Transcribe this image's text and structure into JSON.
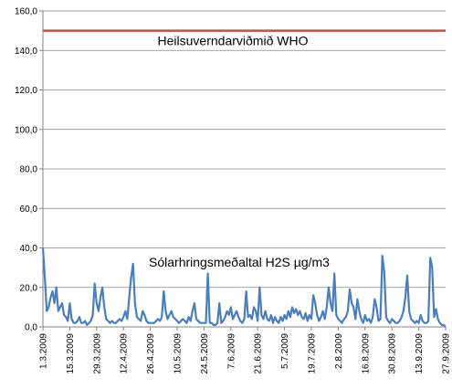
{
  "chart_data": {
    "type": "line",
    "categories": [
      "1.3.2009",
      null,
      null,
      null,
      null,
      null,
      null,
      null,
      null,
      null,
      null,
      null,
      null,
      null,
      "15.3.2009",
      null,
      null,
      null,
      null,
      null,
      null,
      null,
      null,
      null,
      null,
      null,
      null,
      null,
      "29.3.2009",
      null,
      null,
      null,
      null,
      null,
      null,
      null,
      null,
      null,
      null,
      null,
      null,
      null,
      "12.4.2009",
      null,
      null,
      null,
      null,
      null,
      null,
      null,
      null,
      null,
      null,
      null,
      null,
      null,
      "26.4.2009",
      null,
      null,
      null,
      null,
      null,
      null,
      null,
      null,
      null,
      null,
      null,
      null,
      null,
      "10.5.2009",
      null,
      null,
      null,
      null,
      null,
      null,
      null,
      null,
      null,
      null,
      null,
      null,
      null,
      "24.5.2009",
      null,
      null,
      null,
      null,
      null,
      null,
      null,
      null,
      null,
      null,
      null,
      null,
      null,
      "7.6.2009",
      null,
      null,
      null,
      null,
      null,
      null,
      null,
      null,
      null,
      null,
      null,
      null,
      null,
      "21.6.2009",
      null,
      null,
      null,
      null,
      null,
      null,
      null,
      null,
      null,
      null,
      null,
      null,
      null,
      "5.7.2009",
      null,
      null,
      null,
      null,
      null,
      null,
      null,
      null,
      null,
      null,
      null,
      null,
      null,
      "19.7.2009",
      null,
      null,
      null,
      null,
      null,
      null,
      null,
      null,
      null,
      null,
      null,
      null,
      null,
      "2.8.2009",
      null,
      null,
      null,
      null,
      null,
      null,
      null,
      null,
      null,
      null,
      null,
      null,
      null,
      "16.8.2009",
      null,
      null,
      null,
      null,
      null,
      null,
      null,
      null,
      null,
      null,
      null,
      null,
      null,
      "30.8.2009",
      null,
      null,
      null,
      null,
      null,
      null,
      null,
      null,
      null,
      null,
      null,
      null,
      null,
      "13.9.2009",
      null,
      null,
      null,
      null,
      null,
      null,
      null,
      null,
      null,
      null,
      null,
      null,
      null,
      "27.9.2009"
    ],
    "series": [
      {
        "name": "Sólarhringsmeðaltal H2S µg/m3",
        "color": "#4a7ebb",
        "values": [
          40,
          25,
          8,
          10,
          15,
          18,
          12,
          20,
          8,
          10,
          12,
          6,
          5,
          3,
          12,
          4,
          2,
          2,
          3,
          5,
          2,
          2,
          3,
          1,
          2,
          3,
          6,
          22,
          12,
          8,
          15,
          20,
          10,
          4,
          3,
          2,
          3,
          2,
          2,
          3,
          4,
          3,
          5,
          8,
          4,
          15,
          25,
          32,
          12,
          5,
          4,
          3,
          8,
          6,
          3,
          2,
          2,
          2,
          2,
          3,
          4,
          3,
          5,
          18,
          8,
          4,
          6,
          8,
          5,
          4,
          3,
          2,
          3,
          4,
          3,
          2,
          5,
          3,
          8,
          12,
          4,
          3,
          2,
          2,
          2,
          2,
          27,
          2,
          2,
          1,
          1,
          2,
          12,
          2,
          3,
          5,
          8,
          6,
          10,
          4,
          6,
          8,
          5,
          3,
          2,
          4,
          18,
          5,
          6,
          4,
          10,
          8,
          3,
          20,
          6,
          4,
          8,
          4,
          3,
          6,
          2,
          5,
          3,
          2,
          5,
          3,
          6,
          4,
          8,
          5,
          10,
          7,
          9,
          6,
          8,
          5,
          4,
          7,
          3,
          6,
          4,
          16,
          12,
          6,
          3,
          5,
          8,
          4,
          10,
          20,
          12,
          8,
          27,
          6,
          4,
          3,
          2,
          4,
          5,
          8,
          19,
          12,
          10,
          4,
          14,
          8,
          4,
          2,
          6,
          3,
          4,
          2,
          5,
          14,
          10,
          3,
          4,
          36,
          28,
          5,
          3,
          2,
          4,
          3,
          2,
          2,
          3,
          5,
          8,
          15,
          26,
          8,
          4,
          3,
          2,
          3,
          2,
          6,
          3,
          2,
          2,
          3,
          35,
          30,
          5,
          9,
          4,
          2,
          1,
          1,
          0
        ]
      }
    ],
    "hlines": [
      {
        "value": 150,
        "label": "Heilsuverndarviðmið WHO",
        "color": "#c0504d"
      }
    ],
    "ylim": [
      0,
      160
    ],
    "yticks": [
      {
        "value": 0,
        "label": "0,0"
      },
      {
        "value": 20,
        "label": "20,0"
      },
      {
        "value": 40,
        "label": "40,0"
      },
      {
        "value": 60,
        "label": "60,0"
      },
      {
        "value": 80,
        "label": "80,0"
      },
      {
        "value": 100,
        "label": "100,0"
      },
      {
        "value": 120,
        "label": "120,0"
      },
      {
        "value": 140,
        "label": "140,0"
      },
      {
        "value": 160,
        "label": "160,0"
      }
    ],
    "grid": true
  }
}
